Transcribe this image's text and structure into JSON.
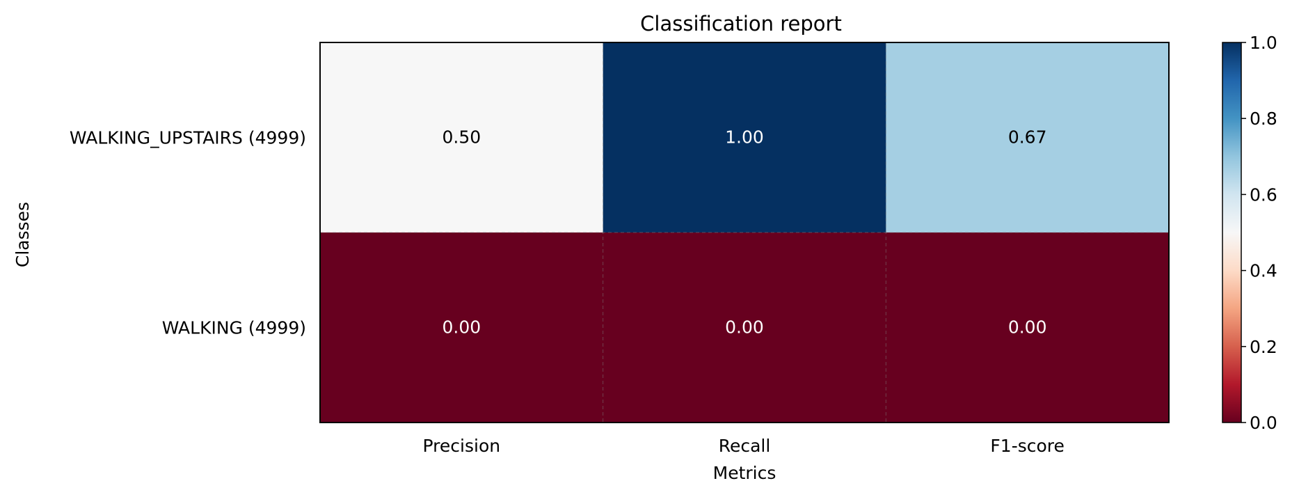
{
  "chart_data": {
    "type": "heatmap",
    "title": "Classification report",
    "xlabel": "Metrics",
    "ylabel": "Classes",
    "x_categories": [
      "Precision",
      "Recall",
      "F1-score"
    ],
    "y_categories": [
      "WALKING_UPSTAIRS (4999)",
      "WALKING (4999)"
    ],
    "values": [
      [
        0.5,
        1.0,
        0.67
      ],
      [
        0.0,
        0.0,
        0.0
      ]
    ],
    "value_labels": [
      [
        "0.50",
        "1.00",
        "0.67"
      ],
      [
        "0.00",
        "0.00",
        "0.00"
      ]
    ],
    "colormap": "RdBu",
    "colorbar": {
      "range": [
        0.0,
        1.0
      ],
      "ticks": [
        "0.0",
        "0.2",
        "0.4",
        "0.6",
        "0.8",
        "1.0"
      ]
    },
    "grid": "dashed"
  }
}
